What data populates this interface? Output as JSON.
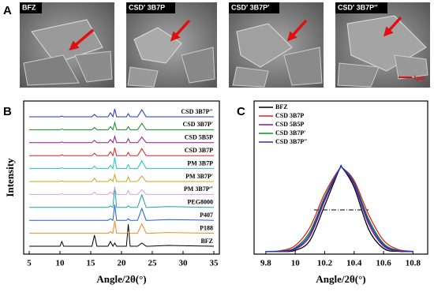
{
  "figure": {
    "panels": [
      "A",
      "B",
      "C"
    ],
    "images": [
      {
        "label": "BFZ"
      },
      {
        "label": "CSD′ 3B7P"
      },
      {
        "label": "CSD′ 3B7P′"
      },
      {
        "label": "CSD′ 3B7P″"
      }
    ],
    "scale_bar": "1μm"
  },
  "chart_data": [
    {
      "type": "line",
      "xlabel": "Angle/2θ(°)",
      "ylabel": "Intensity",
      "xlim": [
        4.1,
        35.9
      ],
      "xticks": [
        5,
        10,
        15,
        20,
        25,
        30,
        35
      ],
      "x": [
        5,
        10.0,
        10.3,
        10.6,
        15.2,
        15.6,
        16.0,
        17.8,
        18.2,
        18.6,
        18.9,
        19.2,
        20.8,
        21.1,
        21.4,
        22.6,
        23.3,
        24.0,
        24.5,
        27.5,
        35
      ],
      "series": [
        {
          "name": "BFZ",
          "color": "#000000",
          "values": [
            0,
            0,
            6,
            0,
            0,
            14,
            0,
            0,
            6,
            0,
            4,
            0,
            0,
            28,
            0,
            0,
            4,
            0,
            0,
            1,
            0
          ]
        },
        {
          "name": "P188",
          "color": "#f08a24",
          "values": [
            0,
            0,
            0,
            0,
            0,
            0,
            0,
            0,
            2,
            0,
            16,
            0,
            0,
            2,
            0,
            0,
            12,
            0,
            0,
            1,
            0
          ]
        },
        {
          "name": "P407",
          "color": "#1f5fd0",
          "values": [
            0,
            0,
            0,
            0,
            0,
            0,
            0,
            0,
            2,
            0,
            20,
            0,
            0,
            2,
            0,
            0,
            15,
            0,
            0,
            1,
            0
          ]
        },
        {
          "name": "PEG8000",
          "color": "#20a0a0",
          "values": [
            0,
            0,
            0,
            0,
            0,
            0,
            0,
            0,
            2,
            0,
            26,
            0,
            0,
            2,
            0,
            0,
            16,
            0,
            0,
            1,
            0
          ]
        },
        {
          "name": "PM 3B7P″",
          "color": "#d8a0e0",
          "values": [
            0,
            0,
            1,
            0,
            0,
            3,
            0,
            0,
            3,
            0,
            8,
            0,
            0,
            5,
            0,
            0,
            6,
            0,
            0,
            0,
            0
          ]
        },
        {
          "name": "PM 3B7P′",
          "color": "#d4a017",
          "values": [
            0,
            0,
            1,
            0,
            0,
            4,
            0,
            0,
            3,
            0,
            9,
            0,
            0,
            6,
            0,
            0,
            7,
            0,
            0,
            0,
            0
          ]
        },
        {
          "name": "PM 3B7P",
          "color": "#18c8c8",
          "values": [
            0,
            0,
            1,
            0,
            0,
            3,
            0,
            0,
            4,
            0,
            14,
            0,
            0,
            5,
            0,
            0,
            10,
            0,
            0,
            0,
            0
          ]
        },
        {
          "name": "CSD 3B7P",
          "color": "#e02020",
          "values": [
            0,
            0,
            1,
            0,
            0,
            3,
            0,
            0,
            5,
            0,
            10,
            0,
            0,
            4,
            0,
            0,
            9,
            0,
            0,
            0,
            0
          ]
        },
        {
          "name": "CSD 5B5P",
          "color": "#8a1a8a",
          "values": [
            0,
            0,
            1,
            0,
            0,
            3,
            0,
            0,
            4,
            0,
            8,
            0,
            0,
            5,
            0,
            0,
            7,
            0,
            0,
            0,
            0
          ]
        },
        {
          "name": "CSD 3B7P′",
          "color": "#108a20",
          "values": [
            0,
            0,
            1,
            0,
            0,
            3,
            0,
            0,
            4,
            0,
            9,
            0,
            0,
            4,
            0,
            0,
            8,
            0,
            0,
            0,
            0
          ]
        },
        {
          "name": "CSD 3B7P″",
          "color": "#2030d0",
          "values": [
            0,
            0,
            1,
            0,
            0,
            3,
            0,
            0,
            5,
            0,
            10,
            0,
            0,
            4,
            0,
            0,
            9,
            0,
            0,
            0,
            0
          ]
        }
      ]
    },
    {
      "type": "line",
      "xlabel": "Angle/2θ(°)",
      "xlim": [
        9.72,
        10.9
      ],
      "xticks": [
        9.8,
        10,
        10.2,
        10.4,
        10.6,
        10.8
      ],
      "ylim": [
        -0.03,
        1.8
      ],
      "x": [
        9.8,
        9.9,
        10.0,
        10.1,
        10.2,
        10.3,
        10.32,
        10.4,
        10.5,
        10.6,
        10.7,
        10.8
      ],
      "series": [
        {
          "name": "BFZ",
          "color": "#000000",
          "values": [
            0,
            0.001,
            0.015,
            0.135,
            0.552,
            0.984,
            1,
            0.768,
            0.262,
            0.039,
            0.003,
            0
          ]
        },
        {
          "name": "CSD 3B7P",
          "color": "#e02020",
          "values": [
            0.001,
            0.011,
            0.073,
            0.291,
            0.693,
            0.99,
            1,
            0.849,
            0.437,
            0.135,
            0.025,
            0.003
          ]
        },
        {
          "name": "CSD 5B5P",
          "color": "#8a1a8a",
          "values": [
            0,
            0.002,
            0.029,
            0.186,
            0.607,
            0.986,
            1,
            0.801,
            0.325,
            0.066,
            0.007,
            0
          ]
        },
        {
          "name": "CSD 3B7P′",
          "color": "#108a20",
          "values": [
            0,
            0.005,
            0.048,
            0.239,
            0.653,
            0.988,
            1,
            0.828,
            0.383,
            0.098,
            0.014,
            0.001
          ]
        },
        {
          "name": "CSD 3B7P″",
          "color": "#2030d0",
          "values": [
            0,
            0.004,
            0.038,
            0.212,
            0.631,
            0.987,
            1,
            0.815,
            0.355,
            0.081,
            0.01,
            0.001
          ]
        }
      ]
    }
  ]
}
